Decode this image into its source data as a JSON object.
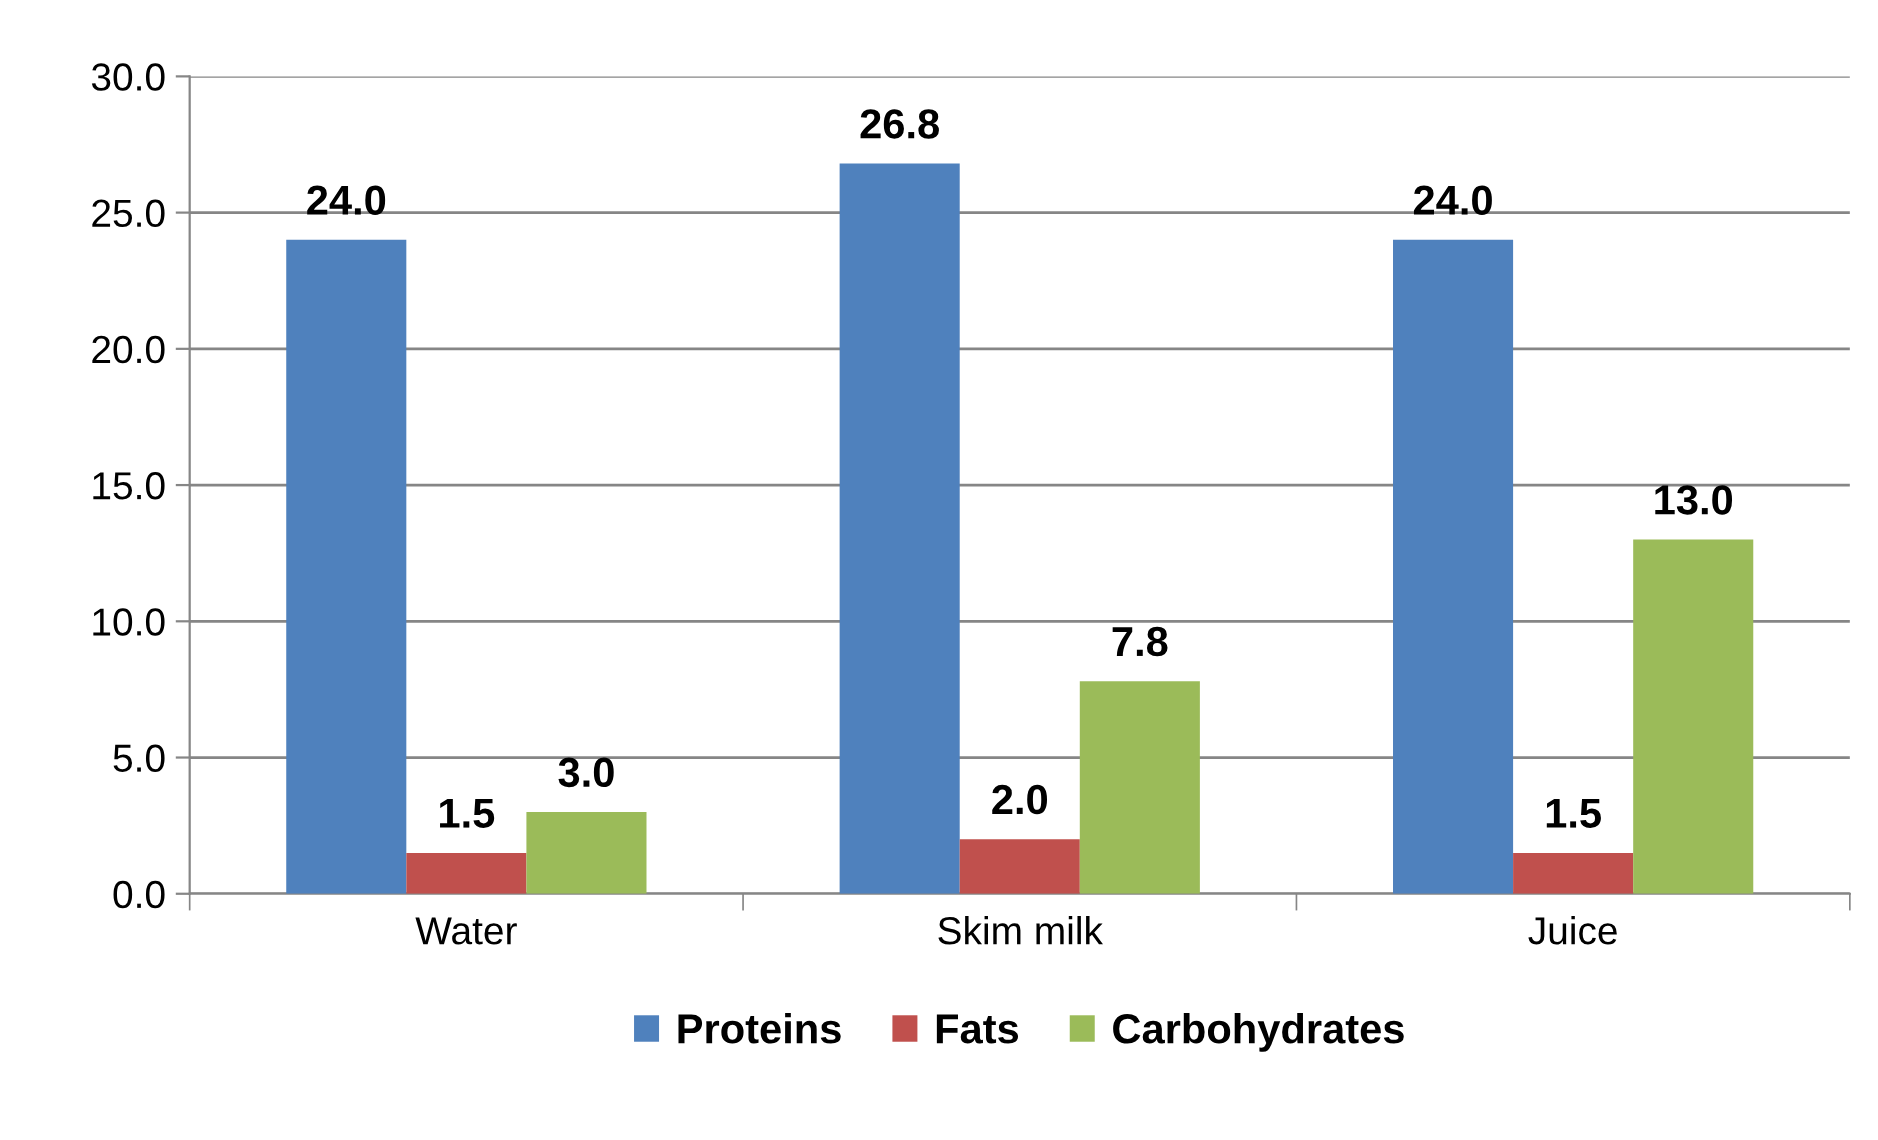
{
  "chart_data": {
    "type": "bar",
    "categories": [
      "Water",
      "Skim milk",
      "Juice"
    ],
    "series": [
      {
        "name": "Proteins",
        "color": "#4f81bd",
        "values": [
          24.0,
          26.8,
          24.0
        ],
        "value_labels": [
          "24.0",
          "26.8",
          "24.0"
        ]
      },
      {
        "name": "Fats",
        "color": "#c0504d",
        "values": [
          1.5,
          2.0,
          1.5
        ],
        "value_labels": [
          "1.5",
          "2.0",
          "1.5"
        ]
      },
      {
        "name": "Carbohydrates",
        "color": "#9bbb59",
        "values": [
          3.0,
          7.8,
          13.0
        ],
        "value_labels": [
          "3.0",
          "7.8",
          "13.0"
        ]
      }
    ],
    "ylim": [
      0,
      30
    ],
    "yticks": [
      {
        "value": 0,
        "label": "0.0"
      },
      {
        "value": 5,
        "label": "5.0"
      },
      {
        "value": 10,
        "label": "10.0"
      },
      {
        "value": 15,
        "label": "15.0"
      },
      {
        "value": 20,
        "label": "20.0"
      },
      {
        "value": 25,
        "label": "25.0"
      },
      {
        "value": 30,
        "label": "30.0"
      }
    ],
    "grid": "y",
    "legend": "bottom"
  }
}
